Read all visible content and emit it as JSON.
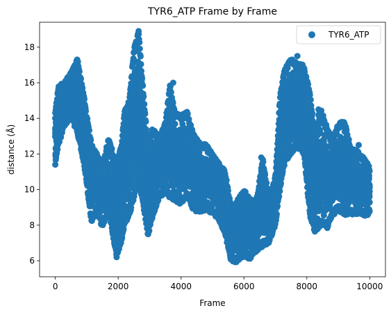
{
  "chart_data": {
    "type": "scatter",
    "title": "TYR6_ATP Frame by Frame",
    "xlabel": "Frame",
    "ylabel": "distance (Å)",
    "xlim": [
      -500,
      10500
    ],
    "ylim": [
      5.1,
      19.4
    ],
    "xticks": [
      0,
      2000,
      4000,
      6000,
      8000,
      10000
    ],
    "yticks": [
      6,
      8,
      10,
      12,
      14,
      16,
      18
    ],
    "grid": false,
    "legend_position": "top-right",
    "series": [
      {
        "name": "TYR6_ATP",
        "color": "#1f77b4",
        "marker": "circle",
        "envelope": [
          {
            "x": 0,
            "low": 11.3,
            "high": 14.5
          },
          {
            "x": 100,
            "low": 12.5,
            "high": 15.8
          },
          {
            "x": 300,
            "low": 13.6,
            "high": 16.1
          },
          {
            "x": 500,
            "low": 14.0,
            "high": 16.6
          },
          {
            "x": 700,
            "low": 13.2,
            "high": 17.4
          },
          {
            "x": 900,
            "low": 11.5,
            "high": 15.4
          },
          {
            "x": 1000,
            "low": 10.2,
            "high": 14.2
          },
          {
            "x": 1150,
            "low": 8.2,
            "high": 12.6
          },
          {
            "x": 1300,
            "low": 8.6,
            "high": 12.1
          },
          {
            "x": 1500,
            "low": 7.9,
            "high": 11.4
          },
          {
            "x": 1700,
            "low": 8.8,
            "high": 12.9
          },
          {
            "x": 1850,
            "low": 7.2,
            "high": 12.0
          },
          {
            "x": 1950,
            "low": 6.2,
            "high": 11.5
          },
          {
            "x": 2100,
            "low": 7.0,
            "high": 12.5
          },
          {
            "x": 2200,
            "low": 8.0,
            "high": 14.4
          },
          {
            "x": 2350,
            "low": 8.5,
            "high": 15.0
          },
          {
            "x": 2500,
            "low": 9.5,
            "high": 17.9
          },
          {
            "x": 2650,
            "low": 10.5,
            "high": 18.9
          },
          {
            "x": 2800,
            "low": 9.0,
            "high": 15.5
          },
          {
            "x": 2950,
            "low": 7.4,
            "high": 12.5
          },
          {
            "x": 3100,
            "low": 8.5,
            "high": 13.5
          },
          {
            "x": 3300,
            "low": 9.5,
            "high": 12.9
          },
          {
            "x": 3500,
            "low": 9.8,
            "high": 13.8
          },
          {
            "x": 3650,
            "low": 9.5,
            "high": 15.9
          },
          {
            "x": 3800,
            "low": 9.4,
            "high": 14.4
          },
          {
            "x": 4000,
            "low": 9.1,
            "high": 14.2
          },
          {
            "x": 4200,
            "low": 9.6,
            "high": 14.4
          },
          {
            "x": 4400,
            "low": 8.8,
            "high": 13.1
          },
          {
            "x": 4600,
            "low": 8.7,
            "high": 12.6
          },
          {
            "x": 4800,
            "low": 8.8,
            "high": 12.6
          },
          {
            "x": 5000,
            "low": 8.6,
            "high": 12.0
          },
          {
            "x": 5200,
            "low": 8.3,
            "high": 11.5
          },
          {
            "x": 5400,
            "low": 7.5,
            "high": 11.1
          },
          {
            "x": 5600,
            "low": 5.9,
            "high": 8.9
          },
          {
            "x": 5800,
            "low": 5.9,
            "high": 9.5
          },
          {
            "x": 6000,
            "low": 6.2,
            "high": 10.0
          },
          {
            "x": 6200,
            "low": 6.1,
            "high": 9.5
          },
          {
            "x": 6400,
            "low": 6.5,
            "high": 9.5
          },
          {
            "x": 6600,
            "low": 6.8,
            "high": 11.7
          },
          {
            "x": 6800,
            "low": 7.0,
            "high": 9.5
          },
          {
            "x": 7000,
            "low": 8.0,
            "high": 10.8
          },
          {
            "x": 7150,
            "low": 10.0,
            "high": 15.4
          },
          {
            "x": 7300,
            "low": 11.5,
            "high": 16.8
          },
          {
            "x": 7500,
            "low": 12.0,
            "high": 17.4
          },
          {
            "x": 7700,
            "low": 12.4,
            "high": 17.1
          },
          {
            "x": 7900,
            "low": 12.0,
            "high": 17.0
          },
          {
            "x": 8100,
            "low": 8.5,
            "high": 15.5
          },
          {
            "x": 8250,
            "low": 7.6,
            "high": 13.0
          },
          {
            "x": 8450,
            "low": 8.0,
            "high": 14.5
          },
          {
            "x": 8650,
            "low": 7.8,
            "high": 13.5
          },
          {
            "x": 8800,
            "low": 8.5,
            "high": 12.8
          },
          {
            "x": 9000,
            "low": 8.8,
            "high": 13.7
          },
          {
            "x": 9200,
            "low": 8.5,
            "high": 13.9
          },
          {
            "x": 9400,
            "low": 8.6,
            "high": 12.3
          },
          {
            "x": 9600,
            "low": 8.6,
            "high": 12.2
          },
          {
            "x": 9800,
            "low": 8.5,
            "high": 11.8
          },
          {
            "x": 10000,
            "low": 8.6,
            "high": 11.3
          }
        ],
        "outliers": [
          {
            "x": 2650,
            "y": 18.9
          },
          {
            "x": 1950,
            "y": 6.2
          },
          {
            "x": 3750,
            "y": 16.0
          },
          {
            "x": 6550,
            "y": 11.8
          },
          {
            "x": 6550,
            "y": 11.2
          },
          {
            "x": 9650,
            "y": 12.5
          },
          {
            "x": 8370,
            "y": 14.5
          },
          {
            "x": 8370,
            "y": 14.2
          },
          {
            "x": 1980,
            "y": 6.6
          },
          {
            "x": 7700,
            "y": 17.5
          }
        ]
      }
    ]
  }
}
